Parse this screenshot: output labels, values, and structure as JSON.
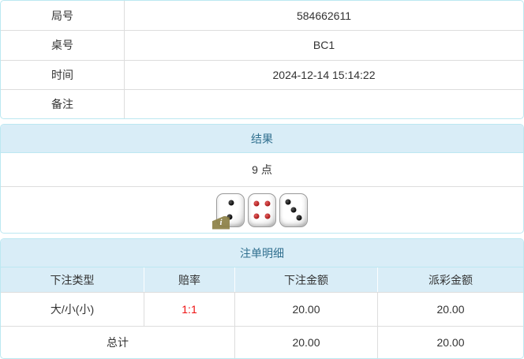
{
  "info_table": {
    "rows": [
      {
        "label": "局号",
        "value": "584662611"
      },
      {
        "label": "桌号",
        "value": "BC1"
      },
      {
        "label": "时间",
        "value": "2024-12-14 15:14:22"
      },
      {
        "label": "备注",
        "value": ""
      }
    ]
  },
  "result_panel": {
    "title": "结果",
    "points": "9 点",
    "dice": [
      {
        "value": 2,
        "color": "black"
      },
      {
        "value": 4,
        "color": "red"
      },
      {
        "value": 3,
        "color": "black"
      }
    ],
    "info_badge_label": "i"
  },
  "bets_panel": {
    "title": "注单明细",
    "columns": [
      "下注类型",
      "赔率",
      "下注金额",
      "派彩金额"
    ],
    "rows": [
      {
        "type": "大/小(小)",
        "odds": "1:1",
        "bet_amount": "20.00",
        "payout_amount": "20.00"
      }
    ],
    "total": {
      "label": "总计",
      "bet_amount": "20.00",
      "payout_amount": "20.00"
    }
  },
  "colors": {
    "panel_border": "#bce8f1",
    "heading_bg": "#d9edf7",
    "heading_text": "#31708f",
    "odds_red": "#ee1111",
    "badge_olive": "#8d8248",
    "grid_line": "#dddddd",
    "text": "#333333"
  }
}
